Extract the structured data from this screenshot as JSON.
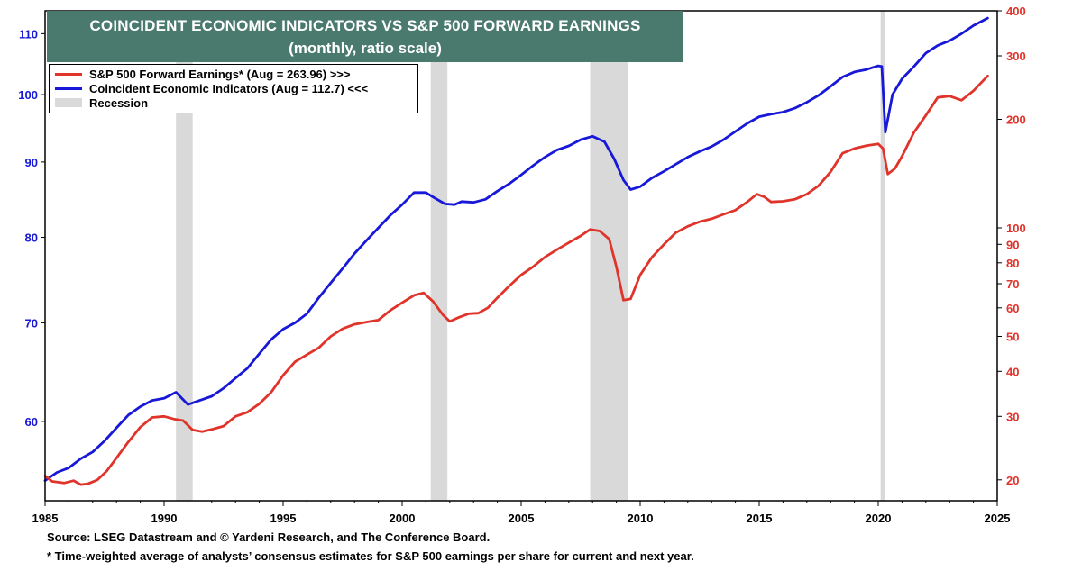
{
  "title": {
    "line1": "COINCIDENT ECONOMIC  INDICATORS VS S&P 500 FORWARD EARNINGS",
    "line2": "(monthly, ratio scale)"
  },
  "legend": {
    "items": [
      {
        "label": "S&P 500 Forward Earnings* (Aug = 263.96) >>>",
        "color": "#e0342b"
      },
      {
        "label": "Coincident Economic Indicators (Aug = 112.7) <<<",
        "color": "#1818d8"
      },
      {
        "label": "Recession",
        "color": "#d9d9d9"
      }
    ]
  },
  "footnotes": {
    "source": "Source: LSEG Datastream and © Yardeni Research, and The Conference Board.",
    "note": "* Time-weighted average of analysts’ consensus estimates for S&P 500 earnings per share for current and next year."
  },
  "chart_data": {
    "type": "line",
    "x_ticks": [
      "1985",
      "1990",
      "1995",
      "2000",
      "2005",
      "2010",
      "2015",
      "2020",
      "2025"
    ],
    "xlim": [
      1985,
      2025
    ],
    "left_axis": {
      "scale": "log",
      "range": [
        53,
        114
      ],
      "tick_labels": [
        "60",
        "70",
        "80",
        "90",
        "100",
        "110"
      ],
      "color": "#1818d8"
    },
    "right_axis": {
      "scale": "log",
      "range": [
        17.5,
        400
      ],
      "tick_labels": [
        "20",
        "30",
        "40",
        "50",
        "60",
        "70",
        "80",
        "90",
        "100",
        "200",
        "300",
        "400"
      ],
      "color": "#e0342b"
    },
    "recessions": [
      [
        1990.5,
        1991.2
      ],
      [
        2001.2,
        2001.9
      ],
      [
        2007.9,
        2009.5
      ],
      [
        2020.1,
        2020.3
      ]
    ],
    "series": [
      {
        "name": "Coincident Economic Indicators (Aug = 112.7) <<<",
        "axis": "left",
        "color": "#1818d8",
        "points": [
          [
            1985.0,
            54.7
          ],
          [
            1985.5,
            55.4
          ],
          [
            1986.0,
            55.8
          ],
          [
            1986.5,
            56.6
          ],
          [
            1987.0,
            57.2
          ],
          [
            1987.5,
            58.2
          ],
          [
            1988.0,
            59.4
          ],
          [
            1988.5,
            60.6
          ],
          [
            1989.0,
            61.4
          ],
          [
            1989.5,
            62.0
          ],
          [
            1990.0,
            62.2
          ],
          [
            1990.5,
            62.8
          ],
          [
            1991.0,
            61.6
          ],
          [
            1991.5,
            62.0
          ],
          [
            1992.0,
            62.4
          ],
          [
            1992.5,
            63.2
          ],
          [
            1993.0,
            64.2
          ],
          [
            1993.5,
            65.2
          ],
          [
            1994.0,
            66.7
          ],
          [
            1994.5,
            68.2
          ],
          [
            1995.0,
            69.3
          ],
          [
            1995.5,
            70.0
          ],
          [
            1996.0,
            71.0
          ],
          [
            1996.5,
            72.8
          ],
          [
            1997.0,
            74.5
          ],
          [
            1997.5,
            76.2
          ],
          [
            1998.0,
            78.0
          ],
          [
            1998.5,
            79.6
          ],
          [
            1999.0,
            81.2
          ],
          [
            1999.5,
            82.8
          ],
          [
            2000.0,
            84.2
          ],
          [
            2000.5,
            85.8
          ],
          [
            2001.0,
            85.8
          ],
          [
            2001.3,
            85.2
          ],
          [
            2001.8,
            84.3
          ],
          [
            2002.2,
            84.2
          ],
          [
            2002.5,
            84.6
          ],
          [
            2003.0,
            84.5
          ],
          [
            2003.5,
            84.9
          ],
          [
            2004.0,
            86.0
          ],
          [
            2004.5,
            87.0
          ],
          [
            2005.0,
            88.2
          ],
          [
            2005.5,
            89.5
          ],
          [
            2006.0,
            90.7
          ],
          [
            2006.5,
            91.7
          ],
          [
            2007.0,
            92.3
          ],
          [
            2007.5,
            93.2
          ],
          [
            2008.0,
            93.7
          ],
          [
            2008.5,
            92.9
          ],
          [
            2008.9,
            90.5
          ],
          [
            2009.3,
            87.5
          ],
          [
            2009.6,
            86.2
          ],
          [
            2010.0,
            86.6
          ],
          [
            2010.5,
            87.8
          ],
          [
            2011.0,
            88.7
          ],
          [
            2011.5,
            89.7
          ],
          [
            2012.0,
            90.7
          ],
          [
            2012.5,
            91.5
          ],
          [
            2013.0,
            92.2
          ],
          [
            2013.5,
            93.2
          ],
          [
            2014.0,
            94.4
          ],
          [
            2014.5,
            95.6
          ],
          [
            2015.0,
            96.6
          ],
          [
            2015.5,
            97.0
          ],
          [
            2016.0,
            97.3
          ],
          [
            2016.5,
            97.9
          ],
          [
            2017.0,
            98.8
          ],
          [
            2017.5,
            99.9
          ],
          [
            2018.0,
            101.3
          ],
          [
            2018.5,
            102.8
          ],
          [
            2019.0,
            103.6
          ],
          [
            2019.5,
            104.0
          ],
          [
            2020.0,
            104.6
          ],
          [
            2020.15,
            104.5
          ],
          [
            2020.3,
            94.3
          ],
          [
            2020.6,
            100.0
          ],
          [
            2021.0,
            102.5
          ],
          [
            2021.5,
            104.5
          ],
          [
            2022.0,
            106.7
          ],
          [
            2022.5,
            108.0
          ],
          [
            2023.0,
            108.8
          ],
          [
            2023.5,
            110.0
          ],
          [
            2024.0,
            111.4
          ],
          [
            2024.6,
            112.7
          ]
        ]
      },
      {
        "name": "S&P 500 Forward Earnings* (Aug = 263.96) >>>",
        "axis": "right",
        "color": "#e0342b",
        "points": [
          [
            1985.0,
            20.5
          ],
          [
            1985.3,
            19.8
          ],
          [
            1985.8,
            19.6
          ],
          [
            1986.2,
            19.9
          ],
          [
            1986.5,
            19.4
          ],
          [
            1986.8,
            19.5
          ],
          [
            1987.2,
            20.0
          ],
          [
            1987.6,
            21.2
          ],
          [
            1988.0,
            23.0
          ],
          [
            1988.5,
            25.5
          ],
          [
            1989.0,
            28.0
          ],
          [
            1989.5,
            29.8
          ],
          [
            1990.0,
            30.0
          ],
          [
            1990.4,
            29.5
          ],
          [
            1990.8,
            29.2
          ],
          [
            1991.2,
            27.5
          ],
          [
            1991.6,
            27.2
          ],
          [
            1992.0,
            27.6
          ],
          [
            1992.5,
            28.2
          ],
          [
            1993.0,
            30.0
          ],
          [
            1993.5,
            30.8
          ],
          [
            1994.0,
            32.5
          ],
          [
            1994.5,
            35.0
          ],
          [
            1995.0,
            39.0
          ],
          [
            1995.5,
            42.5
          ],
          [
            1996.0,
            44.5
          ],
          [
            1996.5,
            46.5
          ],
          [
            1997.0,
            50.0
          ],
          [
            1997.5,
            52.5
          ],
          [
            1998.0,
            54.0
          ],
          [
            1998.5,
            54.8
          ],
          [
            1999.0,
            55.5
          ],
          [
            1999.5,
            59.0
          ],
          [
            2000.0,
            62.0
          ],
          [
            2000.5,
            65.0
          ],
          [
            2000.9,
            66.0
          ],
          [
            2001.3,
            62.5
          ],
          [
            2001.7,
            57.5
          ],
          [
            2002.0,
            55.0
          ],
          [
            2002.4,
            56.5
          ],
          [
            2002.8,
            57.8
          ],
          [
            2003.2,
            58.0
          ],
          [
            2003.6,
            60.0
          ],
          [
            2004.0,
            64.0
          ],
          [
            2004.5,
            69.0
          ],
          [
            2005.0,
            74.0
          ],
          [
            2005.5,
            78.0
          ],
          [
            2006.0,
            83.0
          ],
          [
            2006.5,
            87.0
          ],
          [
            2007.0,
            91.0
          ],
          [
            2007.5,
            95.0
          ],
          [
            2007.9,
            99.0
          ],
          [
            2008.3,
            98.0
          ],
          [
            2008.7,
            93.0
          ],
          [
            2009.0,
            78.0
          ],
          [
            2009.3,
            63.0
          ],
          [
            2009.6,
            63.5
          ],
          [
            2010.0,
            74.0
          ],
          [
            2010.5,
            83.0
          ],
          [
            2011.0,
            90.0
          ],
          [
            2011.5,
            97.0
          ],
          [
            2012.0,
            101.0
          ],
          [
            2012.5,
            104.0
          ],
          [
            2013.0,
            106.0
          ],
          [
            2013.5,
            109.0
          ],
          [
            2014.0,
            112.0
          ],
          [
            2014.5,
            118.0
          ],
          [
            2014.9,
            124.0
          ],
          [
            2015.2,
            122.0
          ],
          [
            2015.5,
            118.0
          ],
          [
            2016.0,
            118.5
          ],
          [
            2016.5,
            120.0
          ],
          [
            2017.0,
            124.0
          ],
          [
            2017.5,
            131.0
          ],
          [
            2018.0,
            143.0
          ],
          [
            2018.5,
            161.0
          ],
          [
            2019.0,
            166.0
          ],
          [
            2019.5,
            169.0
          ],
          [
            2020.0,
            171.0
          ],
          [
            2020.2,
            166.0
          ],
          [
            2020.4,
            141.0
          ],
          [
            2020.7,
            146.0
          ],
          [
            2021.0,
            158.0
          ],
          [
            2021.5,
            184.0
          ],
          [
            2022.0,
            205.0
          ],
          [
            2022.5,
            230.0
          ],
          [
            2023.0,
            232.0
          ],
          [
            2023.5,
            226.0
          ],
          [
            2024.0,
            240.0
          ],
          [
            2024.6,
            263.96
          ]
        ]
      }
    ]
  }
}
